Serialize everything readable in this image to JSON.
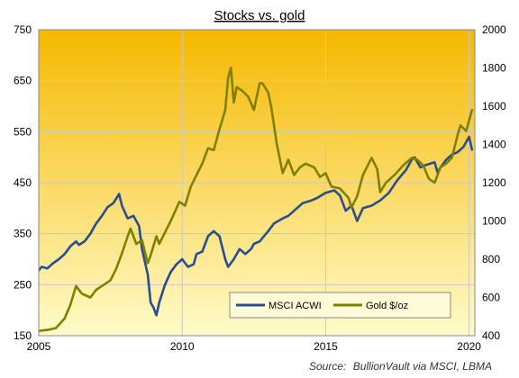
{
  "chart_data": {
    "type": "line",
    "title": "Stocks vs. gold",
    "source_prefix": "Source:",
    "source_text": "BullionVault via MSCI, LBMA",
    "legend_position": "bottom-right",
    "x_ticks": [
      "2005",
      "2010",
      "2015",
      "2020"
    ],
    "y_left_ticks": [
      "150",
      "250",
      "350",
      "450",
      "550",
      "650",
      "750"
    ],
    "y_right_ticks": [
      "400",
      "600",
      "800",
      "1000",
      "1200",
      "1400",
      "1600",
      "1800",
      "2000"
    ],
    "xlim": [
      2005.0,
      2020.2
    ],
    "ylim_left": [
      150,
      750
    ],
    "ylim_right": [
      400,
      2000
    ],
    "background_gradient": {
      "top": "#f6b800",
      "bottom": "#fffbc8"
    },
    "series": [
      {
        "name": "MSCI ACWI",
        "axis": "left",
        "color": "#2a4d8f",
        "x": [
          2005.0,
          2005.1,
          2005.3,
          2005.5,
          2005.7,
          2005.9,
          2006.1,
          2006.3,
          2006.4,
          2006.6,
          2006.8,
          2007.0,
          2007.2,
          2007.4,
          2007.6,
          2007.8,
          2007.9,
          2008.1,
          2008.3,
          2008.5,
          2008.6,
          2008.8,
          2008.9,
          2009.0,
          2009.1,
          2009.2,
          2009.4,
          2009.6,
          2009.8,
          2010.0,
          2010.2,
          2010.4,
          2010.5,
          2010.7,
          2010.9,
          2011.1,
          2011.3,
          2011.5,
          2011.6,
          2011.8,
          2012.0,
          2012.2,
          2012.4,
          2012.5,
          2012.7,
          2013.0,
          2013.2,
          2013.5,
          2013.7,
          2014.0,
          2014.2,
          2014.5,
          2014.7,
          2015.0,
          2015.3,
          2015.5,
          2015.7,
          2015.9,
          2016.1,
          2016.3,
          2016.6,
          2016.9,
          2017.2,
          2017.5,
          2017.8,
          2018.0,
          2018.1,
          2018.3,
          2018.5,
          2018.8,
          2018.9,
          2019.0,
          2019.2,
          2019.4,
          2019.6,
          2019.8,
          2020.0,
          2020.1
        ],
        "values": [
          278,
          285,
          282,
          292,
          300,
          310,
          325,
          335,
          328,
          335,
          350,
          370,
          385,
          402,
          410,
          428,
          405,
          380,
          385,
          365,
          320,
          270,
          215,
          205,
          190,
          215,
          250,
          275,
          290,
          300,
          285,
          290,
          310,
          315,
          345,
          355,
          345,
          300,
          285,
          300,
          320,
          310,
          320,
          330,
          335,
          355,
          370,
          380,
          385,
          400,
          410,
          415,
          420,
          430,
          435,
          425,
          395,
          405,
          375,
          400,
          405,
          415,
          430,
          455,
          475,
          495,
          500,
          480,
          485,
          490,
          470,
          480,
          495,
          505,
          510,
          520,
          540,
          515
        ]
      },
      {
        "name": "Gold $/oz",
        "axis": "right",
        "color": "#808000",
        "x": [
          2005.0,
          2005.3,
          2005.6,
          2005.9,
          2006.1,
          2006.3,
          2006.5,
          2006.8,
          2007.0,
          2007.2,
          2007.5,
          2007.7,
          2007.9,
          2008.1,
          2008.2,
          2008.4,
          2008.6,
          2008.8,
          2008.9,
          2009.1,
          2009.2,
          2009.4,
          2009.6,
          2009.9,
          2010.1,
          2010.3,
          2010.5,
          2010.7,
          2010.9,
          2011.1,
          2011.3,
          2011.5,
          2011.6,
          2011.7,
          2011.8,
          2011.9,
          2012.1,
          2012.3,
          2012.5,
          2012.7,
          2012.8,
          2013.0,
          2013.1,
          2013.3,
          2013.5,
          2013.7,
          2013.9,
          2014.1,
          2014.3,
          2014.6,
          2014.8,
          2015.0,
          2015.2,
          2015.5,
          2015.8,
          2015.9,
          2016.1,
          2016.3,
          2016.6,
          2016.8,
          2016.9,
          2017.1,
          2017.4,
          2017.7,
          2018.0,
          2018.2,
          2018.4,
          2018.6,
          2018.8,
          2019.0,
          2019.2,
          2019.4,
          2019.6,
          2019.7,
          2019.9,
          2020.1
        ],
        "values": [
          425,
          430,
          440,
          490,
          560,
          660,
          620,
          600,
          640,
          660,
          690,
          750,
          830,
          920,
          960,
          880,
          900,
          780,
          820,
          920,
          880,
          940,
          1000,
          1100,
          1080,
          1180,
          1240,
          1300,
          1380,
          1370,
          1480,
          1580,
          1750,
          1800,
          1620,
          1700,
          1680,
          1650,
          1580,
          1720,
          1720,
          1670,
          1600,
          1400,
          1250,
          1320,
          1240,
          1280,
          1300,
          1280,
          1230,
          1250,
          1180,
          1170,
          1120,
          1070,
          1130,
          1240,
          1330,
          1270,
          1150,
          1200,
          1240,
          1290,
          1330,
          1320,
          1290,
          1220,
          1200,
          1280,
          1300,
          1330,
          1450,
          1500,
          1470,
          1580
        ]
      }
    ]
  }
}
